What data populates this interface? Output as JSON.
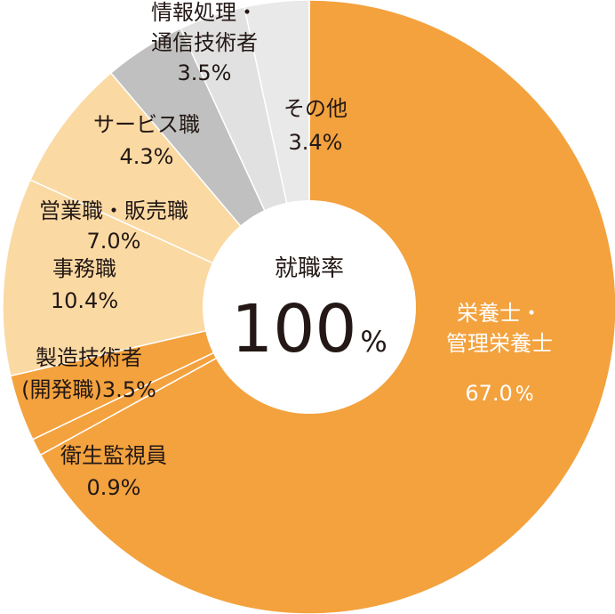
{
  "chart_data": {
    "type": "pie",
    "center": {
      "title": "就職率",
      "value": "100",
      "unit": "%"
    },
    "slices": [
      {
        "label_lines": [
          "栄養士・",
          "管理栄養士"
        ],
        "value": 67.0,
        "value_label": "67.0",
        "unit": "%",
        "color": "#F3A23E"
      },
      {
        "label_lines": [
          "衛生監視員"
        ],
        "value": 0.9,
        "value_label": "0.9%",
        "color": "#F3A23E"
      },
      {
        "label_lines": [
          "製造技術者"
        ],
        "paren_label": "(開発職)",
        "value": 3.5,
        "value_label": "3.5%",
        "color": "#F3A23E"
      },
      {
        "label_lines": [
          "事務職"
        ],
        "value": 10.4,
        "value_label": "10.4%",
        "color": "#FAD9A3"
      },
      {
        "label_lines": [
          "営業職・販売職"
        ],
        "value": 7.0,
        "value_label": "7.0%",
        "color": "#FAD9A3"
      },
      {
        "label_lines": [
          "サービス職"
        ],
        "value": 4.3,
        "value_label": "4.3%",
        "color": "#BFC0BF"
      },
      {
        "label_lines": [
          "情報処理・",
          "通信技術者"
        ],
        "value": 3.5,
        "value_label": "3.5%",
        "color": "#E1E1E1"
      },
      {
        "label_lines": [
          "その他"
        ],
        "value": 3.4,
        "value_label": "3.4%",
        "color": "#E9E9E9"
      }
    ]
  }
}
